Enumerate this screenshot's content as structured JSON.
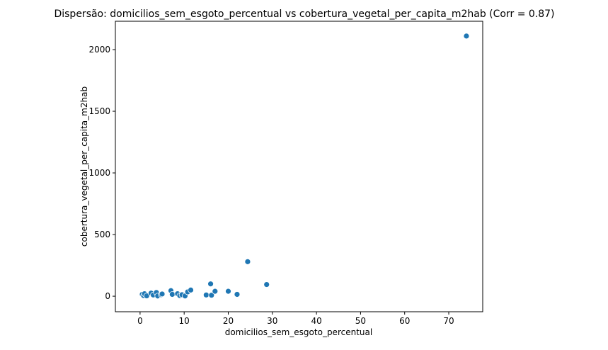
{
  "chart_data": {
    "type": "scatter",
    "title": "Dispersão: domicilios_sem_esgoto_percentual vs cobertura_vegetal_per_capita_m2hab (Corr = 0.87)",
    "x_label": "domicilios_sem_esgoto_percentual",
    "y_label": "cobertura_vegetal_per_capita_m2hab",
    "color": "#1f77b4",
    "x": [
      0.5,
      0.8,
      1.0,
      1.5,
      2.5,
      3.0,
      3.7,
      4.0,
      4.8,
      5.0,
      7.0,
      7.3,
      8.5,
      9.0,
      9.5,
      10.2,
      10.8,
      11.5,
      15.0,
      16.0,
      16.2,
      17.0,
      20.0,
      22.0,
      24.4,
      28.7,
      74.0
    ],
    "values": [
      15,
      5,
      20,
      3,
      25,
      10,
      30,
      2,
      12,
      18,
      45,
      15,
      20,
      5,
      12,
      2,
      35,
      50,
      10,
      100,
      8,
      40,
      40,
      15,
      280,
      95,
      2110
    ],
    "xlim": [
      -5.6,
      77.7
    ],
    "xticks": [
      0,
      10,
      20,
      30,
      40,
      50,
      60,
      70
    ],
    "ylim": [
      -126,
      2230
    ],
    "yticks": [
      0,
      500,
      1000,
      1500,
      2000
    ]
  }
}
